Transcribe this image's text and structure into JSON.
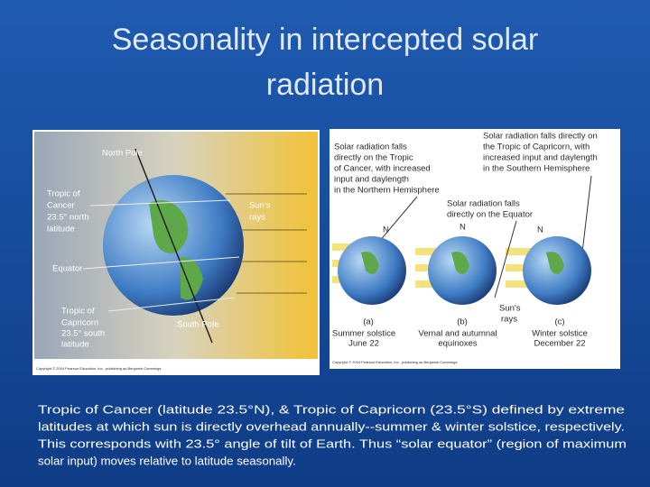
{
  "title": [
    "Seasonality in intercepted solar",
    "radiation"
  ],
  "figure_left": {
    "north_pole": "North Pole",
    "tropic_of_cancer": [
      "Tropic of",
      "Cancer",
      "23.5° north",
      "latitude"
    ],
    "suns_rays": [
      "Sun's",
      "rays"
    ],
    "equator": "Equator",
    "tropic_of_capricorn": [
      "Tropic of",
      "Capricorn",
      "23.5° south",
      "latitude"
    ],
    "south_pole": "South Pole",
    "copyright": "Copyright © 2004 Pearson Education, Inc., publishing as Benjamin Cummings"
  },
  "figure_right": {
    "capricorn_note": [
      "Solar radiation falls directly on",
      "the Tropic of Capricorn, with",
      "increased input and daylength",
      "in the Southern Hemisphere"
    ],
    "cancer_note": [
      "Solar radiation falls",
      "directly on the Tropic",
      "of Cancer, with increased",
      "input and daylength",
      "in the Northern Hemisphere"
    ],
    "equator_note": [
      "Solar radiation falls",
      "directly on the Equator"
    ],
    "north_labels": [
      "N",
      "N",
      "N"
    ],
    "suns_rays": [
      "Sun's",
      "rays"
    ],
    "panels": [
      {
        "letter": "(a)",
        "caption": [
          "Summer solstice",
          "June 22"
        ]
      },
      {
        "letter": "(b)",
        "caption": [
          "Vernal and autumnal",
          "equinoxes"
        ]
      },
      {
        "letter": "(c)",
        "caption": [
          "Winter solstice",
          "December 22"
        ]
      }
    ],
    "copyright": "Copyright © 2004 Pearson Education, Inc., publishing as Benjamin Cummings"
  },
  "caption": [
    "Tropic of Cancer (latitude 23.5°N), & Tropic of Capricorn (23.5°S) defined by extreme",
    "latitudes at which sun is directly overhead annually--summer & winter solstice, respectively.",
    "This corresponds with 23.5° angle of tilt of Earth.  Thus “solar equator” (region of maximum",
    "solar input) moves relative to latitude seasonally."
  ]
}
